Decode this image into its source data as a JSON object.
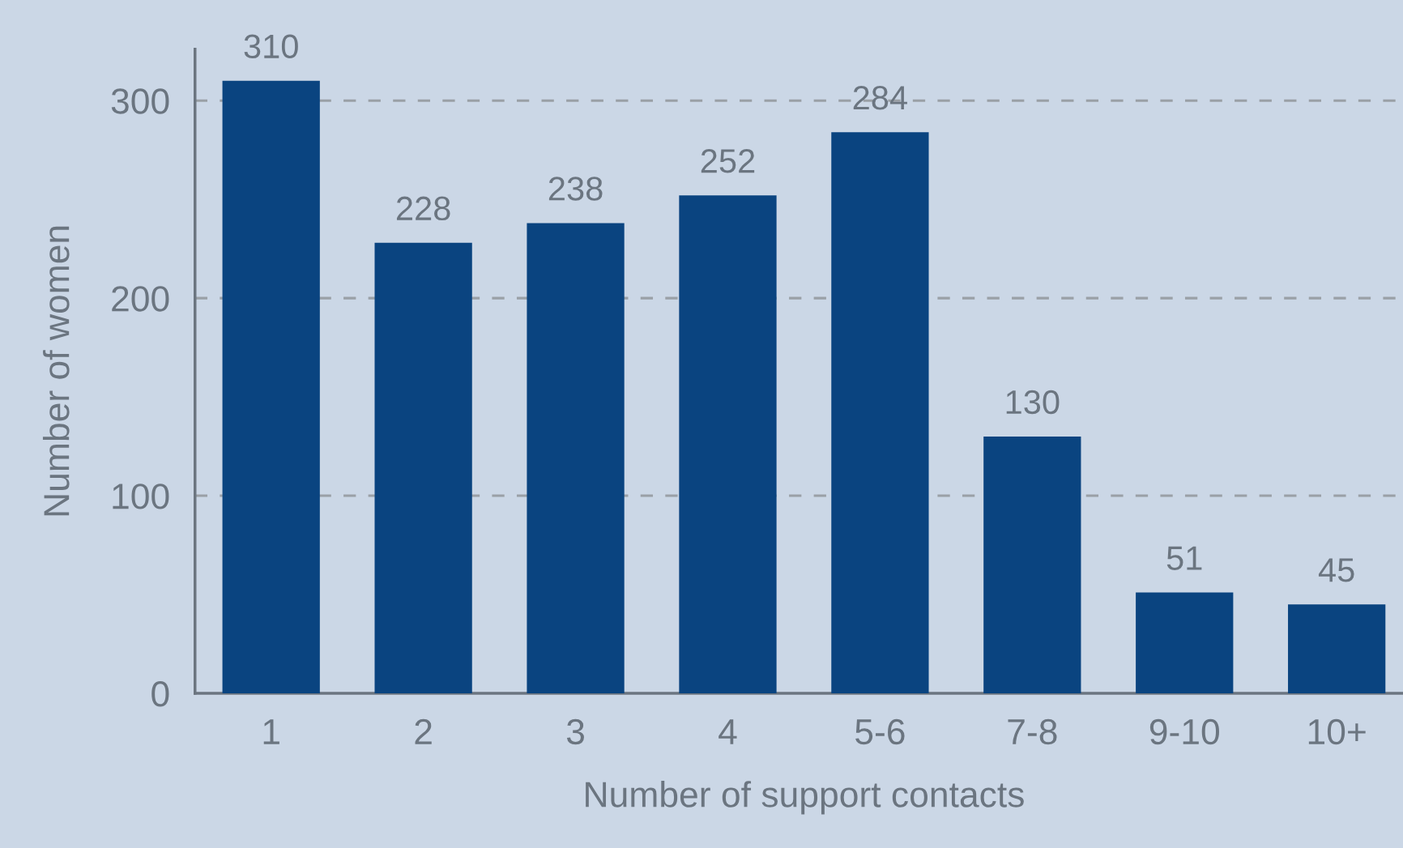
{
  "chart_data": {
    "type": "bar",
    "xlabel": "Number of support contacts",
    "ylabel": "Number of women",
    "categories": [
      "1",
      "2",
      "3",
      "4",
      "5-6",
      "7-8",
      "9-10",
      "10+"
    ],
    "values": [
      310,
      228,
      238,
      252,
      284,
      130,
      51,
      45
    ],
    "color": "#0a4480",
    "ylim": [
      0,
      326
    ],
    "yticks": [
      0,
      100,
      200,
      300
    ],
    "grid": "y",
    "data_labels": true,
    "legend": false
  }
}
